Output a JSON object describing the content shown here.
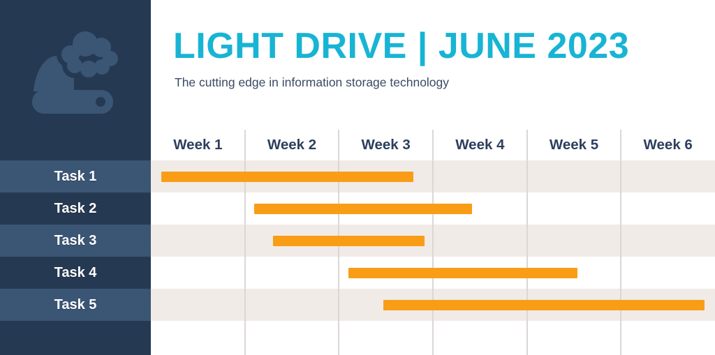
{
  "header": {
    "title": "LIGHT DRIVE | JUNE 2023",
    "subtitle": "The cutting edge in information storage technology"
  },
  "sidebar": {
    "logo_icon": "cloud-drive-icon"
  },
  "chart_data": {
    "type": "bar",
    "variant": "gantt",
    "title": "LIGHT DRIVE | JUNE 2023",
    "subtitle": "The cutting edge in information storage technology",
    "x_unit": "week",
    "x_range": [
      0,
      6
    ],
    "categories": [
      "Week 1",
      "Week 2",
      "Week 3",
      "Week 4",
      "Week 5",
      "Week 6"
    ],
    "grid": "vertical",
    "legend": "none",
    "tasks": [
      {
        "label": "Task 1",
        "start_week": 0.11,
        "end_week": 2.79
      },
      {
        "label": "Task 2",
        "start_week": 1.1,
        "end_week": 3.42
      },
      {
        "label": "Task 3",
        "start_week": 1.3,
        "end_week": 2.91
      },
      {
        "label": "Task 4",
        "start_week": 2.1,
        "end_week": 4.54
      },
      {
        "label": "Task 5",
        "start_week": 2.47,
        "end_week": 5.89
      }
    ]
  },
  "colors": {
    "accent_cyan": "#17b4d4",
    "bar_orange": "#f99d17",
    "sidebar_navy": "#253a52",
    "sidebar_row_highlight": "#3b5675",
    "row_beige": "#f0ebe7",
    "grid_line": "#dbd7d4",
    "heading_navy": "#2d3f5e",
    "subtitle_navy": "#3b4a63",
    "task_label_white": "#ffffff"
  }
}
